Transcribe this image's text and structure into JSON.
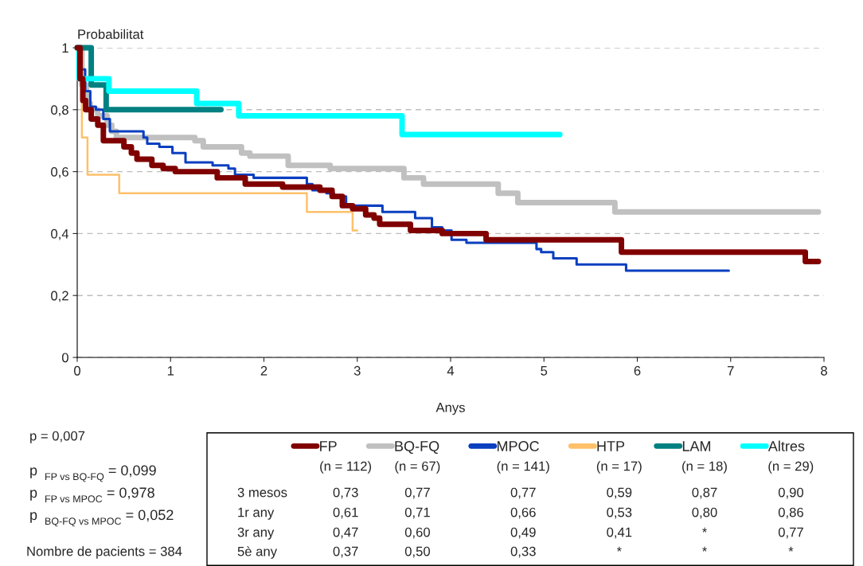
{
  "chart_data": {
    "type": "step",
    "xlabel": "Anys",
    "ylabel": "Probabilitat",
    "xlim": [
      0,
      8
    ],
    "xticks": [
      0,
      1,
      2,
      3,
      4,
      5,
      6,
      7,
      8
    ],
    "ylim": [
      0,
      1
    ],
    "yticks": [
      0,
      {
        "value": 0.2,
        "label": "0,2"
      },
      {
        "value": 0.4,
        "label": "0,4"
      },
      {
        "value": 0.6,
        "label": "0,6"
      },
      {
        "value": 0.8,
        "label": "0,8"
      },
      1
    ],
    "grid": "y",
    "legend": "bottom",
    "series": [
      {
        "name": "FP",
        "color": "#800000",
        "x": [
          0,
          0.03,
          0.06,
          0.09,
          0.15,
          0.22,
          0.28,
          0.5,
          0.58,
          0.64,
          0.8,
          0.92,
          1.05,
          1.5,
          1.8,
          2.2,
          2.6,
          2.73,
          2.84,
          2.95,
          3.09,
          3.18,
          3.24,
          3.57,
          3.91,
          4.38,
          5.83,
          7.8,
          7.94
        ],
        "values": [
          1,
          0.9,
          0.83,
          0.8,
          0.77,
          0.75,
          0.7,
          0.68,
          0.66,
          0.64,
          0.62,
          0.61,
          0.6,
          0.58,
          0.56,
          0.55,
          0.54,
          0.52,
          0.49,
          0.48,
          0.46,
          0.45,
          0.43,
          0.41,
          0.4,
          0.38,
          0.34,
          0.31,
          0.31
        ]
      },
      {
        "name": "BQ-FQ",
        "color": "#c0c0c0",
        "x": [
          0,
          0.05,
          0.1,
          0.14,
          0.22,
          0.32,
          0.37,
          0.42,
          1.26,
          1.35,
          1.76,
          1.85,
          2.26,
          2.71,
          3.5,
          3.71,
          4.51,
          4.72,
          5.76,
          7.94
        ],
        "values": [
          1,
          0.88,
          0.82,
          0.8,
          0.78,
          0.75,
          0.73,
          0.71,
          0.7,
          0.68,
          0.66,
          0.65,
          0.62,
          0.61,
          0.58,
          0.56,
          0.53,
          0.5,
          0.47,
          0.47
        ]
      },
      {
        "name": "MPOC",
        "color": "#0a3fc0",
        "x": [
          0,
          0.04,
          0.085,
          0.14,
          0.2,
          0.28,
          0.35,
          0.71,
          0.75,
          0.88,
          1.02,
          1.16,
          1.45,
          1.62,
          1.69,
          1.89,
          2.46,
          2.52,
          2.67,
          2.75,
          2.88,
          3.27,
          3.62,
          3.8,
          3.91,
          4.01,
          4.17,
          4.92,
          4.97,
          5.1,
          5.35,
          5.88,
          6.98
        ],
        "values": [
          1,
          0.93,
          0.86,
          0.81,
          0.8,
          0.77,
          0.73,
          0.71,
          0.69,
          0.68,
          0.66,
          0.63,
          0.62,
          0.61,
          0.59,
          0.58,
          0.56,
          0.54,
          0.53,
          0.52,
          0.49,
          0.47,
          0.45,
          0.42,
          0.41,
          0.38,
          0.37,
          0.35,
          0.34,
          0.32,
          0.3,
          0.28,
          0.28
        ]
      },
      {
        "name": "HTP",
        "color": "#ffc06a",
        "x": [
          0,
          0.05,
          0.11,
          0.45,
          2.46,
          2.95,
          3.0
        ],
        "values": [
          1,
          0.71,
          0.59,
          0.53,
          0.47,
          0.41,
          0.41
        ]
      },
      {
        "name": "LAM",
        "color": "#008080",
        "x": [
          0,
          0.15,
          0.31,
          1.54
        ],
        "values": [
          1,
          0.88,
          0.8,
          0.8
        ]
      },
      {
        "name": "Altres",
        "color": "#00ffff",
        "x": [
          0,
          0.02,
          0.34,
          1.28,
          1.73,
          3.48,
          5.17
        ],
        "values": [
          1,
          0.9,
          0.86,
          0.82,
          0.78,
          0.72,
          0.72
        ]
      }
    ],
    "annotations": [
      "p = 0,007",
      "p $_{FP vs BQ-FQ}$ = 0,099",
      "p $_{FP vs MPOC}$ = 0,978",
      "p $_{BQ-FQ vs MPOC}$ = 0,052",
      "Nombre de pacients = 384",
      "(n = 112)",
      "(n = 67)",
      "(n = 141)",
      "(n = 17)",
      "(n = 18)",
      "(n = 29)",
      "3 mesos",
      "1r any",
      "3r any",
      "5è any",
      "0,73",
      "0,77",
      "0,77",
      "0,59",
      "0,87",
      "0,90",
      "0,61",
      "0,71",
      "0,66",
      "0,53",
      "0,80",
      "0,86",
      "0,47",
      "0,60",
      "0,49",
      "0,41",
      "*",
      "0,77",
      "0,37",
      "0,50",
      "0,33",
      "*",
      "*",
      "*"
    ]
  }
}
